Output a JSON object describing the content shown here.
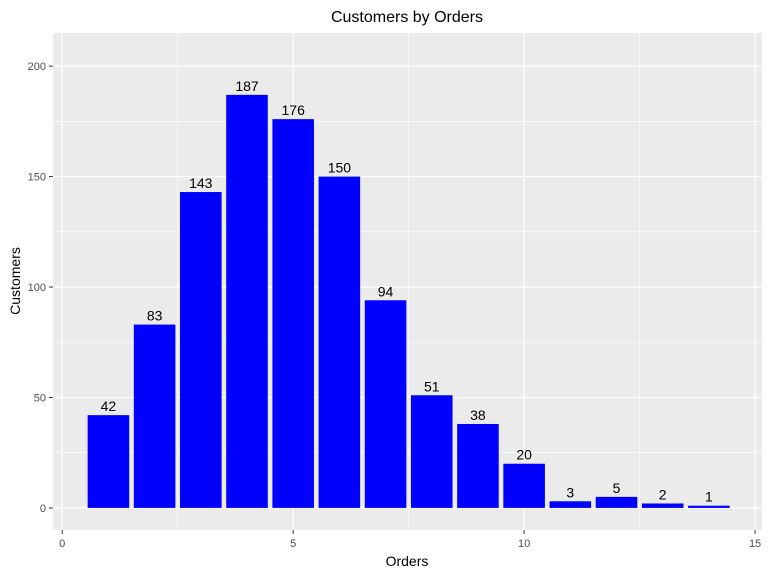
{
  "chart_data": {
    "type": "bar",
    "title": "Customers by Orders",
    "xlabel": "Orders",
    "ylabel": "Customers",
    "x": [
      1,
      2,
      3,
      4,
      5,
      6,
      7,
      8,
      9,
      10,
      11,
      12,
      13,
      14
    ],
    "values": [
      42,
      83,
      143,
      187,
      176,
      150,
      94,
      51,
      38,
      20,
      3,
      5,
      2,
      1
    ],
    "xlim": [
      -0.2,
      15.15
    ],
    "ylim": [
      -10,
      215
    ],
    "x_ticks": [
      0,
      5,
      10,
      15
    ],
    "y_ticks": [
      0,
      50,
      100,
      150,
      200
    ],
    "grid": true,
    "colors": {
      "bar": "#0000ff",
      "panel": "#ebebeb",
      "grid_major": "#ffffff",
      "tick_label": "#4d4d4d"
    }
  }
}
